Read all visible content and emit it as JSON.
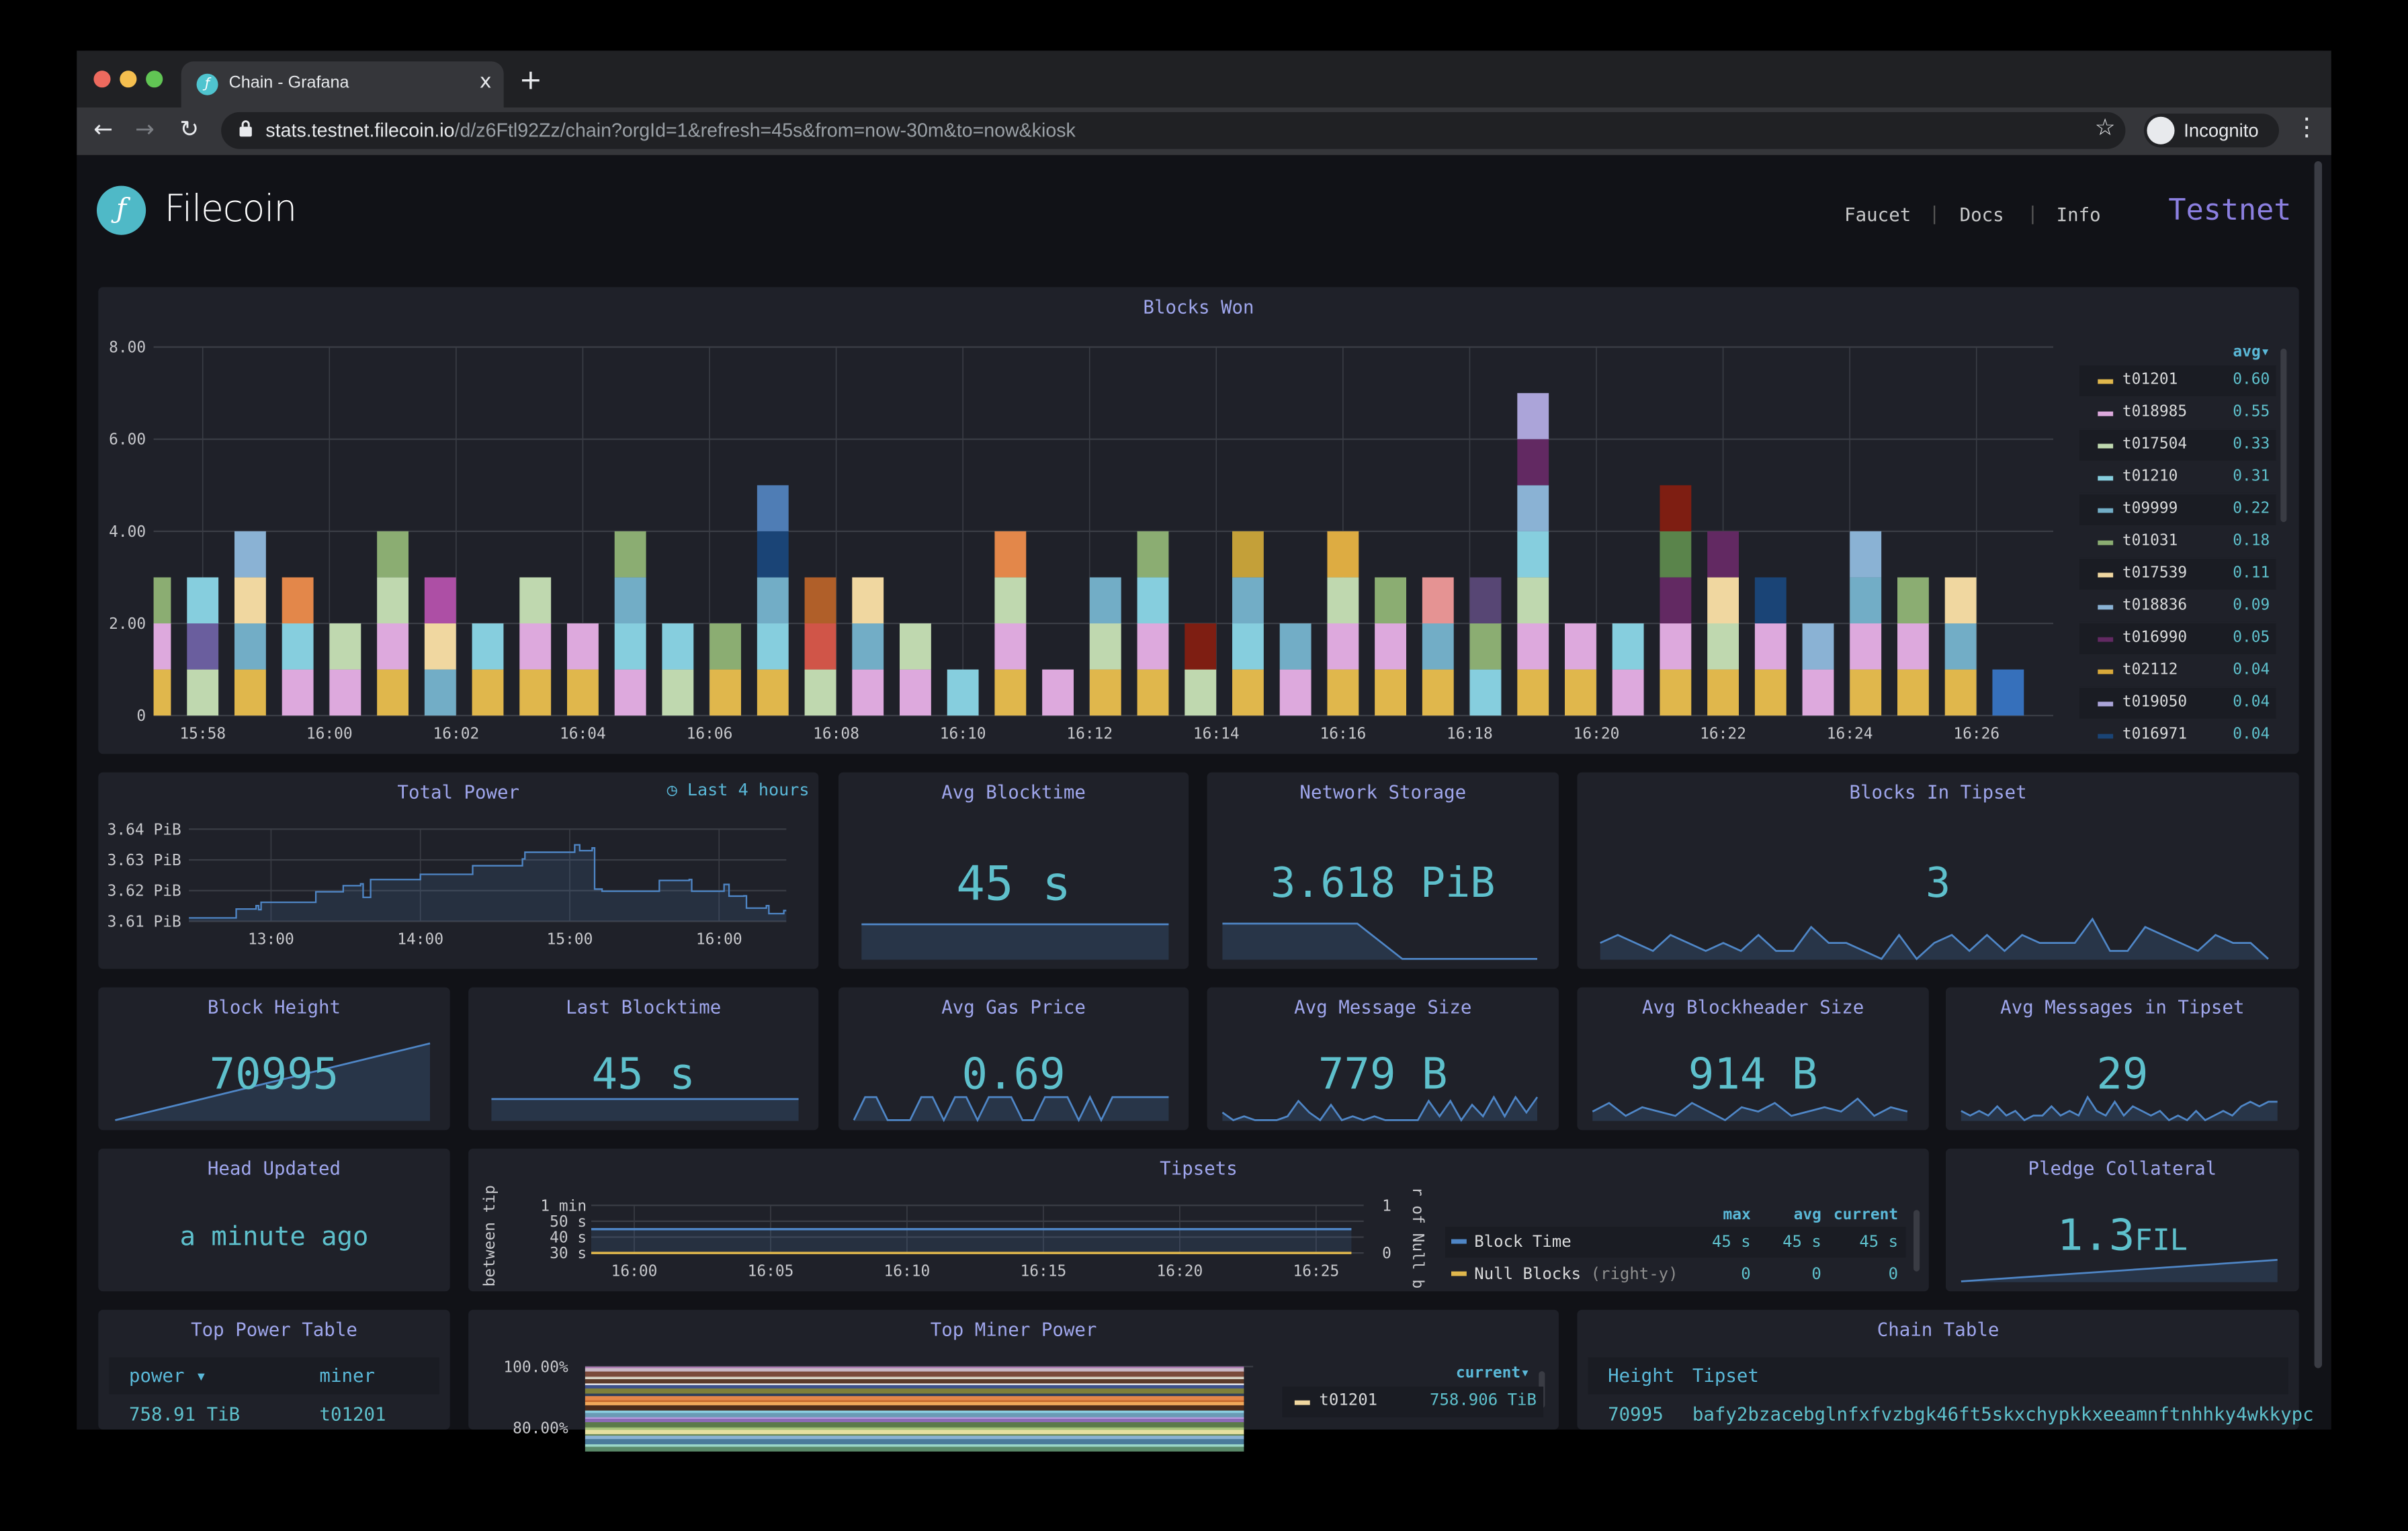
{
  "browser": {
    "tab_title": "Chain - Grafana",
    "tab_close": "x",
    "new_tab": "+",
    "url_host": "stats.testnet.filecoin.io",
    "url_path": "/d/z6Ftl92Zz/chain?orgId=1&refresh=45s&from=now-30m&to=now&kiosk",
    "profile_label": "Incognito"
  },
  "header": {
    "brand": "Filecoin",
    "logo_glyph": "ƒ",
    "links": [
      "Faucet",
      "Docs",
      "Info"
    ],
    "separator": "|",
    "network": "Testnet"
  },
  "colors": {
    "accent": "#5ec0cc",
    "title": "#9fa6ec",
    "panel_bg": "#1f2129",
    "page_bg": "#111217",
    "network": "#8b7fe0",
    "line": "#4f86c6"
  },
  "blocks_won": {
    "title": "Blocks Won",
    "legend_header": "avg▾",
    "legend": [
      {
        "name": "t01201",
        "avg": "0.60",
        "color": "#E0B74C"
      },
      {
        "name": "t018985",
        "avg": "0.55",
        "color": "#DDA9DD"
      },
      {
        "name": "t017504",
        "avg": "0.33",
        "color": "#BFD8AF"
      },
      {
        "name": "t01210",
        "avg": "0.31",
        "color": "#86CEDE"
      },
      {
        "name": "t09999",
        "avg": "0.22",
        "color": "#72ADC6"
      },
      {
        "name": "t01031",
        "avg": "0.18",
        "color": "#8BAD72"
      },
      {
        "name": "t017539",
        "avg": "0.11",
        "color": "#F0D7A0"
      },
      {
        "name": "t018836",
        "avg": "0.09",
        "color": "#8AB2D4"
      },
      {
        "name": "t016990",
        "avg": "0.05",
        "color": "#622962"
      },
      {
        "name": "t02112",
        "avg": "0.04",
        "color": "#D9A93A"
      },
      {
        "name": "t019050",
        "avg": "0.04",
        "color": "#ABA4D9"
      },
      {
        "name": "t016971",
        "avg": "0.04",
        "color": "#1A4476"
      }
    ]
  },
  "total_power": {
    "title": "Total Power",
    "badge": "Last 4 hours"
  },
  "avg_blocktime": {
    "title": "Avg Blocktime",
    "value": "45 s"
  },
  "network_storage": {
    "title": "Network Storage",
    "value": "3.618 PiB"
  },
  "blocks_in_tipset": {
    "title": "Blocks In Tipset",
    "value": "3"
  },
  "block_height": {
    "title": "Block Height",
    "value": "70995"
  },
  "last_blocktime": {
    "title": "Last Blocktime",
    "value": "45 s"
  },
  "avg_gas_price": {
    "title": "Avg Gas Price",
    "value": "0.69"
  },
  "avg_message_size": {
    "title": "Avg Message Size",
    "value": "779 B"
  },
  "avg_blockheader_size": {
    "title": "Avg Blockheader Size",
    "value": "914 B"
  },
  "avg_messages_in_tipset": {
    "title": "Avg Messages in Tipset",
    "value": "29"
  },
  "head_updated": {
    "title": "Head Updated",
    "value": "a minute ago"
  },
  "tipsets": {
    "title": "Tipsets",
    "legend_headers": [
      "max",
      "avg",
      "current"
    ],
    "legend": [
      {
        "name": "Block Time",
        "suffix": "",
        "max": "45 s",
        "avg": "45 s",
        "current": "45 s",
        "color": "#4f86c6"
      },
      {
        "name": "Null Blocks",
        "suffix": "(right-y)",
        "max": "0",
        "avg": "0",
        "current": "0",
        "color": "#E0B74C"
      }
    ]
  },
  "pledge_collateral": {
    "title": "Pledge Collateral",
    "value": "1.3",
    "unit": "FIL"
  },
  "top_power_table": {
    "title": "Top Power Table",
    "columns": [
      "power ▾",
      "miner"
    ],
    "rows": [
      [
        "758.91 TiB",
        "t01201"
      ]
    ]
  },
  "top_miner_power": {
    "title": "Top Miner Power",
    "legend_header": "current▾",
    "legend": [
      {
        "name": "t01201",
        "current": "758.906 TiB",
        "color": "#F0D7A0"
      }
    ]
  },
  "chain_table": {
    "title": "Chain Table",
    "columns": [
      "Height",
      "Tipset"
    ],
    "rows": [
      [
        "70995",
        "bafy2bzacebglnfxfvzbgk46ft5skxchypkkxeeamnftnhhky4wkkypc"
      ]
    ]
  },
  "chart_data": [
    {
      "id": "blocks_won",
      "type": "bar",
      "stacked": true,
      "title": "Blocks Won",
      "ylim": [
        0,
        8
      ],
      "yticks": [
        "0",
        "2.00",
        "4.00",
        "6.00",
        "8.00"
      ],
      "xticks": [
        "15:58",
        "16:00",
        "16:02",
        "16:04",
        "16:06",
        "16:08",
        "16:10",
        "16:12",
        "16:14",
        "16:16",
        "16:18",
        "16:20",
        "16:22",
        "16:24",
        "16:26"
      ],
      "grid": true,
      "legend_placement": "right",
      "bar_start": "15:57:15",
      "bar_interval_s": 45,
      "segment_value": 1,
      "stacks": [
        [
          "#E0B74C",
          "#DDA9DD",
          "#8BAD72"
        ],
        [
          "#BFD8AF",
          "#6A5E9E",
          "#86CEDE"
        ],
        [
          "#E0B74C",
          "#72ADC6",
          "#F0D7A0",
          "#8AB2D4"
        ],
        [
          "#DDA9DD",
          "#86CEDE",
          "#E3874A"
        ],
        [
          "#DDA9DD",
          "#BFD8AF"
        ],
        [
          "#E0B74C",
          "#DDA9DD",
          "#BFD8AF",
          "#8BAD72"
        ],
        [
          "#72ADC6",
          "#F0D7A0",
          "#AD4FA5"
        ],
        [
          "#E0B74C",
          "#86CEDE"
        ],
        [
          "#E0B74C",
          "#DDA9DD",
          "#BFD8AF"
        ],
        [
          "#E0B74C",
          "#DDA9DD"
        ],
        [
          "#DDA9DD",
          "#86CEDE",
          "#72ADC6",
          "#8BAD72"
        ],
        [
          "#BFD8AF",
          "#86CEDE"
        ],
        [
          "#E0B74C",
          "#8BAD72"
        ],
        [
          "#E0B74C",
          "#86CEDE",
          "#72ADC6",
          "#1A4476",
          "#4F7DB5"
        ],
        [
          "#BFD8AF",
          "#D05548",
          "#B05F29"
        ],
        [
          "#DDA9DD",
          "#72ADC6",
          "#F0D7A0"
        ],
        [
          "#DDA9DD",
          "#BFD8AF"
        ],
        [
          "#86CEDE"
        ],
        [
          "#E0B74C",
          "#DDA9DD",
          "#BFD8AF",
          "#E3874A"
        ],
        [
          "#DDA9DD"
        ],
        [
          "#E0B74C",
          "#BFD8AF",
          "#72ADC6"
        ],
        [
          "#E0B74C",
          "#DDA9DD",
          "#86CEDE",
          "#8BAD72"
        ],
        [
          "#BFD8AF",
          "#7E1E12"
        ],
        [
          "#E0B74C",
          "#86CEDE",
          "#72ADC6",
          "#C4A039"
        ],
        [
          "#DDA9DD",
          "#72ADC6"
        ],
        [
          "#E0B74C",
          "#DDA9DD",
          "#BFD8AF",
          "#DDAC42"
        ],
        [
          "#E0B74C",
          "#DDA9DD",
          "#8BAD72"
        ],
        [
          "#E0B74C",
          "#72ADC6",
          "#E59393"
        ],
        [
          "#86CEDE",
          "#8BAD72",
          "#574674"
        ],
        [
          "#E0B74C",
          "#DDA9DD",
          "#BFD8AF",
          "#86CEDE",
          "#8AB2D4",
          "#622962",
          "#ABA4D9"
        ],
        [
          "#E0B74C",
          "#DDA9DD"
        ],
        [
          "#DDA9DD",
          "#86CEDE"
        ],
        [
          "#E0B74C",
          "#DDA9DD",
          "#622962",
          "#5A844B",
          "#7E1E12"
        ],
        [
          "#E0B74C",
          "#BFD8AF",
          "#F0D7A0",
          "#622962"
        ],
        [
          "#E0B74C",
          "#DDA9DD",
          "#1A4476"
        ],
        [
          "#DDA9DD",
          "#8AB2D4"
        ],
        [
          "#E0B74C",
          "#DDA9DD",
          "#72ADC6",
          "#8AB2D4"
        ],
        [
          "#E0B74C",
          "#DDA9DD",
          "#8BAD72"
        ],
        [
          "#E0B74C",
          "#72ADC6",
          "#F0D7A0"
        ],
        [
          "#3670BB"
        ]
      ]
    },
    {
      "id": "total_power",
      "type": "area",
      "title": "Total Power",
      "ylim": [
        3.61,
        3.64
      ],
      "yticks": [
        "3.61 PiB",
        "3.62 PiB",
        "3.63 PiB",
        "3.64 PiB"
      ],
      "xticks": [
        "13:00",
        "14:00",
        "15:00",
        "16:00"
      ],
      "xlim": [
        "12:27",
        "16:27"
      ],
      "grid": true,
      "x": [
        "12:27",
        "12:46",
        "12:54",
        "12:55",
        "12:56",
        "13:18",
        "13:29",
        "13:36",
        "13:37",
        "13:40",
        "14:00",
        "14:21",
        "14:41",
        "14:42",
        "15:02",
        "15:04",
        "15:09",
        "15:10",
        "15:13",
        "15:36",
        "15:48",
        "15:49",
        "16:02",
        "16:04",
        "16:10",
        "16:11",
        "16:19",
        "16:20",
        "16:26"
      ],
      "y": [
        3.6111,
        3.614,
        3.6151,
        3.6138,
        3.6162,
        3.6196,
        3.6216,
        3.6222,
        3.6178,
        3.6236,
        3.6253,
        3.6281,
        3.6303,
        3.6325,
        3.6349,
        3.633,
        3.6339,
        3.6205,
        3.6198,
        3.6233,
        3.6236,
        3.6198,
        3.622,
        3.6182,
        3.6183,
        3.6143,
        3.6151,
        3.6125,
        3.6135
      ]
    },
    {
      "id": "tipsets",
      "type": "line",
      "title": "Tipsets",
      "ylabel_left": "between tip",
      "ylabel_right": "r of Null b",
      "ylim_left": [
        30,
        60
      ],
      "yticks_left": [
        "30 s",
        "40 s",
        "50 s",
        "1 min"
      ],
      "ylim_right": [
        0,
        1
      ],
      "yticks_right": [
        "0",
        "1"
      ],
      "xticks": [
        "16:00",
        "16:05",
        "16:10",
        "16:15",
        "16:20",
        "16:25"
      ],
      "series": [
        {
          "name": "Block Time",
          "value": 45
        },
        {
          "name": "Null Blocks",
          "value": 0
        }
      ]
    },
    {
      "id": "top_miner_power",
      "type": "area",
      "stacked": true,
      "title": "Top Miner Power",
      "yticks": [
        "100.00%",
        "80.00%"
      ],
      "colors": [
        "#b07ab5",
        "#c9b9c5",
        "#7a4a3a",
        "#d6d1c2",
        "#5b3a2a",
        "#f2f2f2",
        "#3c4f8a",
        "#7d7f3a",
        "#2c3d5a",
        "#e3874a",
        "#c2652a",
        "#f0a85a",
        "#4a2a1a",
        "#8acde0",
        "#6a9ab5",
        "#b59adf",
        "#8a6ab5",
        "#5b7a4a",
        "#a5c27a",
        "#e6e0a0",
        "#6a8a5a",
        "#8ab2d4",
        "#4a7a9a",
        "#9ad6c8",
        "#5a8a6a"
      ]
    },
    {
      "id": "sparklines",
      "type": "line",
      "series": [
        {
          "name": "avg_blocktime",
          "values": [
            45,
            45,
            45,
            45,
            45,
            45,
            45,
            45
          ]
        },
        {
          "name": "network_storage",
          "values": [
            3.6182,
            3.6182,
            3.6182,
            3.6182,
            3.6181,
            3.6181,
            3.6181,
            3.6181
          ]
        },
        {
          "name": "blocks_in_tipset",
          "values": [
            3,
            4,
            3,
            2,
            4,
            3,
            2,
            3,
            2,
            4,
            2,
            2,
            5,
            3,
            3,
            2,
            1,
            4,
            1,
            3,
            4,
            2,
            4,
            2,
            4,
            3,
            3,
            3,
            6,
            2,
            2,
            5,
            4,
            3,
            2,
            4,
            3,
            3,
            1
          ]
        },
        {
          "name": "block_height",
          "values": [
            70950,
            70995
          ]
        },
        {
          "name": "avg_gas_price",
          "values": [
            0,
            1,
            1,
            0,
            0,
            0,
            1,
            1,
            0,
            1,
            1,
            0,
            1,
            1,
            1,
            0,
            0,
            1,
            1,
            1,
            0,
            1,
            0,
            1,
            1,
            1,
            1,
            1,
            1
          ]
        },
        {
          "name": "avg_message_size",
          "values": [
            3,
            1,
            2,
            1,
            1,
            1,
            2,
            6,
            3,
            1,
            5,
            1,
            2,
            1,
            2,
            1,
            1,
            1,
            1,
            6,
            2,
            6,
            1,
            5,
            2,
            7,
            2,
            7,
            3,
            7
          ]
        },
        {
          "name": "avg_blockheader_size",
          "values": [
            5,
            5.2,
            4.9,
            5.1,
            5,
            4.9,
            5.2,
            5,
            4.8,
            5.1,
            5,
            5.2,
            4.9,
            5,
            5.1,
            5,
            5.3,
            4.9,
            5.1,
            5
          ]
        },
        {
          "name": "avg_messages_in_tipset",
          "values": [
            3,
            2,
            3,
            2,
            4,
            2,
            3,
            1,
            2,
            2,
            4,
            2,
            3,
            2,
            6,
            3,
            2,
            5,
            2,
            4,
            3,
            2,
            3,
            1,
            2,
            1,
            3,
            1,
            2,
            3,
            2,
            4,
            5,
            4,
            5,
            5
          ]
        }
      ]
    }
  ]
}
